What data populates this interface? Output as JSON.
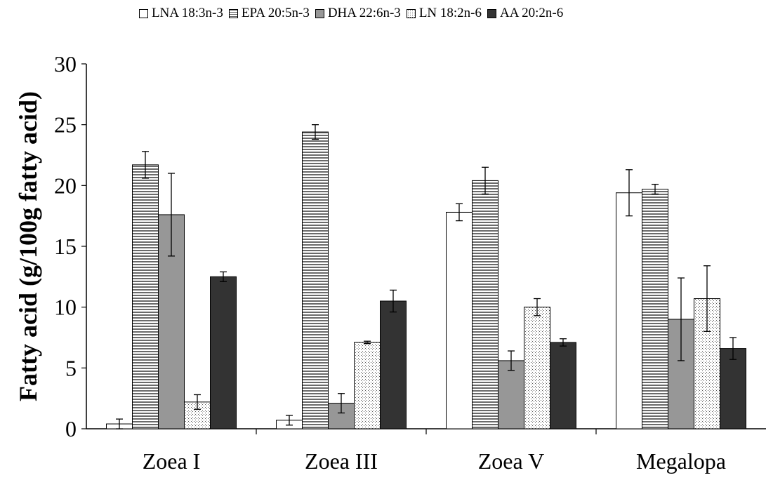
{
  "chart_data": {
    "type": "bar",
    "title": "",
    "xlabel": "",
    "ylabel": "Fatty acid (g/100g fatty acid)",
    "ylim": [
      0,
      30
    ],
    "yticks": [
      0,
      5,
      10,
      15,
      20,
      25,
      30
    ],
    "grid": false,
    "legend_position": "top",
    "categories": [
      "Zoea I",
      "Zoea III",
      "Zoea V",
      "Megalopa"
    ],
    "series": [
      {
        "name": "LNA 18:3n-3",
        "fill": "white",
        "values": [
          0.4,
          0.7,
          17.8,
          19.4
        ],
        "errors": [
          0.4,
          0.4,
          0.7,
          1.9
        ]
      },
      {
        "name": "EPA 20:5n-3",
        "fill": "hstripes",
        "values": [
          21.7,
          24.4,
          20.4,
          19.7
        ],
        "errors": [
          1.1,
          0.6,
          1.1,
          0.4
        ]
      },
      {
        "name": "DHA 22:6n-3",
        "fill": "gray",
        "values": [
          17.6,
          2.1,
          5.6,
          9.0
        ],
        "errors": [
          3.4,
          0.8,
          0.8,
          3.4
        ]
      },
      {
        "name": "LN 18:2n-6",
        "fill": "dotted",
        "values": [
          2.2,
          7.1,
          10.0,
          10.7
        ],
        "errors": [
          0.6,
          0.1,
          0.7,
          2.7
        ]
      },
      {
        "name": "AA 20:2n-6",
        "fill": "dark",
        "values": [
          12.5,
          10.5,
          7.1,
          6.6
        ],
        "errors": [
          0.4,
          0.9,
          0.3,
          0.9
        ]
      }
    ]
  }
}
